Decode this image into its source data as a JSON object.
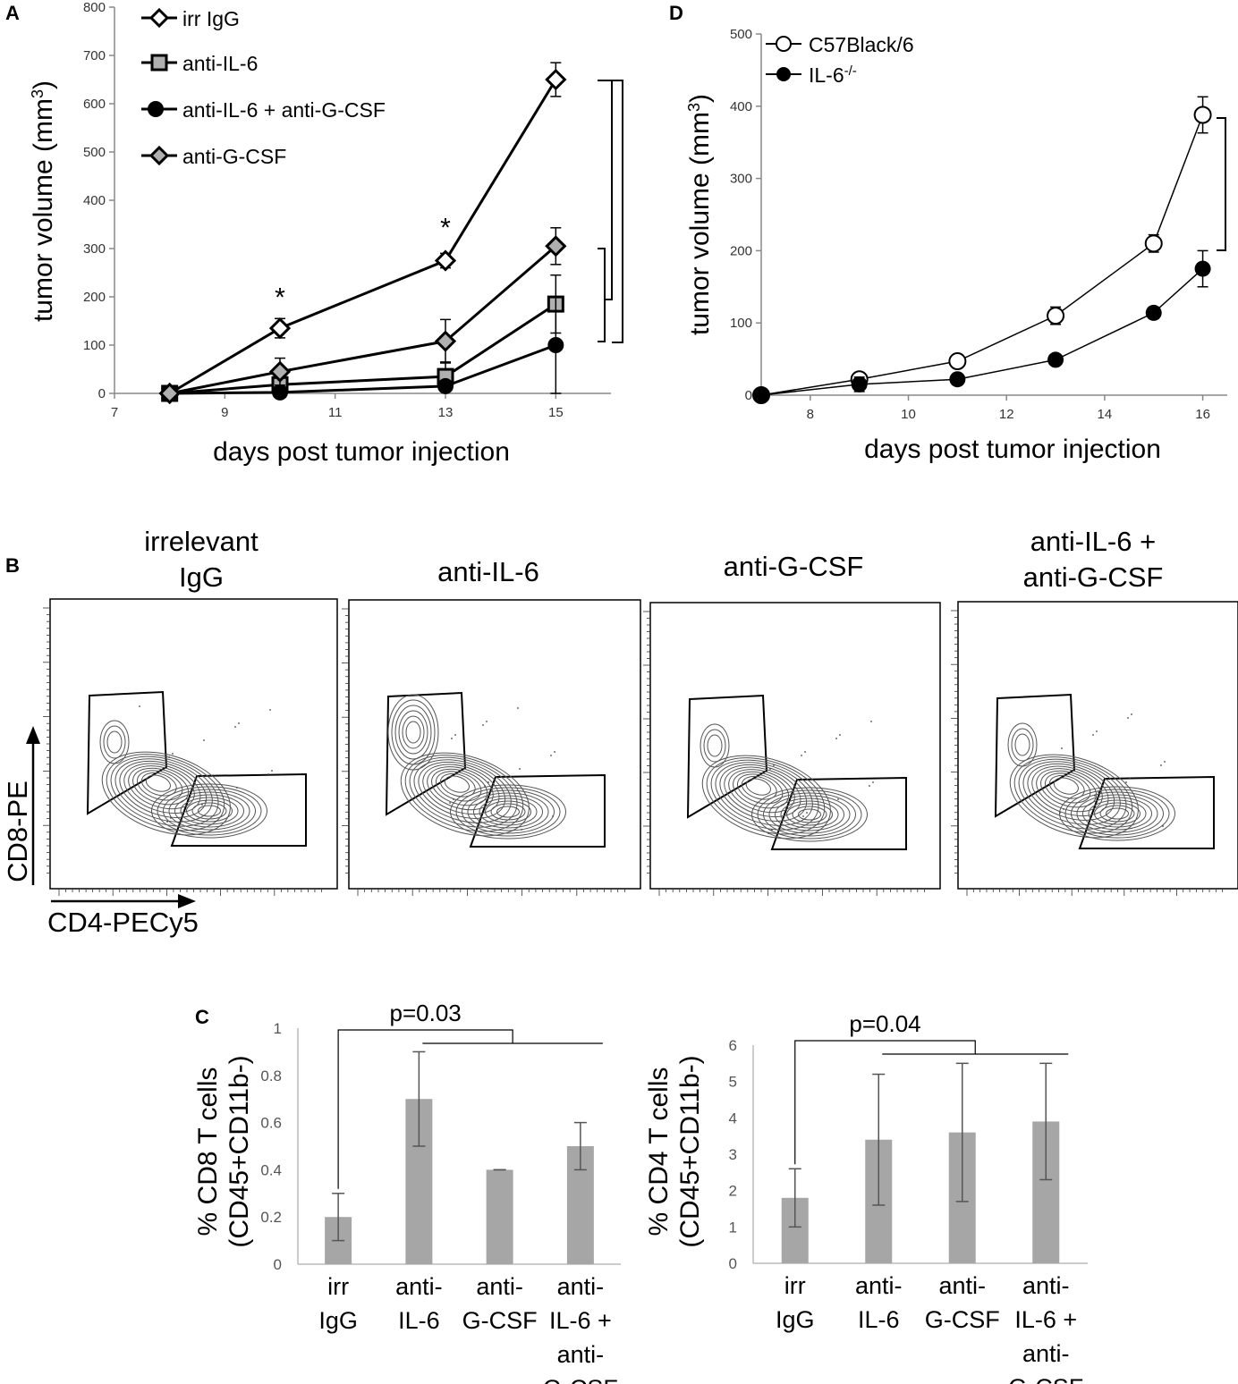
{
  "panel_labels": {
    "a": "A",
    "b": "B",
    "c": "C",
    "d": "D"
  },
  "colors": {
    "line": "#000000",
    "grey_marker": "#b0b0b0",
    "bar": "#a6a6a6",
    "contour": "#555555",
    "axis": "#888888"
  },
  "chart_data": [
    {
      "id": "A",
      "type": "line",
      "xlabel": "days post tumor injection",
      "ylabel_main": "tumor volume (mm",
      "ylabel_sup": "3",
      "ylabel_close": ")",
      "xlim": [
        7,
        16
      ],
      "ylim": [
        0,
        800
      ],
      "xticks": [
        7,
        9,
        11,
        13,
        15
      ],
      "yticks": [
        0,
        100,
        200,
        300,
        400,
        500,
        600,
        700,
        800
      ],
      "series": [
        {
          "name": "irr IgG",
          "marker": "diamond-open",
          "x": [
            8,
            10,
            13,
            15
          ],
          "y": [
            0,
            135,
            275,
            650
          ],
          "err": [
            0,
            20,
            15,
            35
          ]
        },
        {
          "name": "anti-IL-6",
          "marker": "square-grey",
          "x": [
            8,
            10,
            13,
            15
          ],
          "y": [
            0,
            18,
            35,
            185
          ],
          "err": [
            0,
            12,
            30,
            60
          ]
        },
        {
          "name": "anti-IL-6 + anti-G-CSF",
          "marker": "circle-filled",
          "x": [
            8,
            10,
            13,
            15
          ],
          "y": [
            0,
            2,
            15,
            100
          ],
          "err": [
            0,
            0,
            10,
            100
          ]
        },
        {
          "name": "anti-G-CSF",
          "marker": "diamond-grey",
          "x": [
            8,
            10,
            13,
            15
          ],
          "y": [
            0,
            45,
            108,
            305
          ],
          "err": [
            0,
            28,
            45,
            38
          ]
        }
      ],
      "annotations": [
        {
          "text": "*",
          "x": 10,
          "y": 210
        },
        {
          "text": "*",
          "x": 13,
          "y": 355
        }
      ]
    },
    {
      "id": "D",
      "type": "line",
      "xlabel": "days post tumor injection",
      "ylabel_main": "tumor volume (mm",
      "ylabel_sup": "3",
      "ylabel_close": ")",
      "xlim": [
        7,
        16.5
      ],
      "ylim": [
        0,
        500
      ],
      "xticks": [
        8,
        10,
        12,
        14,
        16
      ],
      "yticks": [
        0,
        100,
        200,
        300,
        400,
        500
      ],
      "series": [
        {
          "name": "C57Black/6",
          "marker": "circle-open",
          "x": [
            7,
            9,
            11,
            13,
            15,
            16
          ],
          "y": [
            0,
            22,
            47,
            110,
            210,
            388
          ],
          "err": [
            0,
            5,
            6,
            12,
            12,
            25
          ]
        },
        {
          "name": "IL-6",
          "name_sup": "-/-",
          "marker": "circle-filled",
          "x": [
            7,
            9,
            11,
            13,
            15,
            16
          ],
          "y": [
            0,
            15,
            22,
            49,
            114,
            175
          ],
          "err": [
            0,
            10,
            5,
            5,
            8,
            25
          ]
        }
      ]
    },
    {
      "id": "C-left",
      "type": "bar",
      "ylabel_line1": "% CD8 T cells",
      "ylabel_line2": "(CD45+CD11b-)",
      "ylim": [
        0,
        1
      ],
      "yticks": [
        0,
        0.2,
        0.4,
        0.6,
        0.8,
        1
      ],
      "categories": [
        [
          "irr",
          "IgG"
        ],
        [
          "anti-",
          "IL-6"
        ],
        [
          "anti-",
          "G-CSF"
        ],
        [
          "anti-",
          "IL-6 +",
          "anti-",
          "G-CSF"
        ]
      ],
      "values": [
        0.2,
        0.7,
        0.4,
        0.5
      ],
      "errors": [
        0.1,
        0.2,
        0.0,
        0.1
      ],
      "pvalue": "p=0.03"
    },
    {
      "id": "C-right",
      "type": "bar",
      "ylabel_line1": "% CD4 T cells",
      "ylabel_line2": "(CD45+CD11b-)",
      "ylim": [
        0,
        6
      ],
      "yticks": [
        0,
        1,
        2,
        3,
        4,
        5,
        6
      ],
      "categories": [
        [
          "irr",
          "IgG"
        ],
        [
          "anti-",
          "IL-6"
        ],
        [
          "anti-",
          "G-CSF"
        ],
        [
          "anti-",
          "IL-6 +",
          "anti-",
          "G-CSF"
        ]
      ],
      "values": [
        1.8,
        3.4,
        3.6,
        3.9
      ],
      "errors": [
        0.8,
        1.8,
        1.9,
        1.6
      ],
      "pvalue": "p=0.04"
    }
  ],
  "flow": {
    "ylabel": "CD8-PE",
    "xlabel": "CD4-PECy5",
    "panels": [
      {
        "title": [
          "irrelevant",
          "IgG"
        ]
      },
      {
        "title": [
          "anti-IL-6"
        ]
      },
      {
        "title": [
          "anti-G-CSF"
        ]
      },
      {
        "title": [
          "anti-IL-6 +",
          "anti-G-CSF"
        ]
      }
    ]
  }
}
